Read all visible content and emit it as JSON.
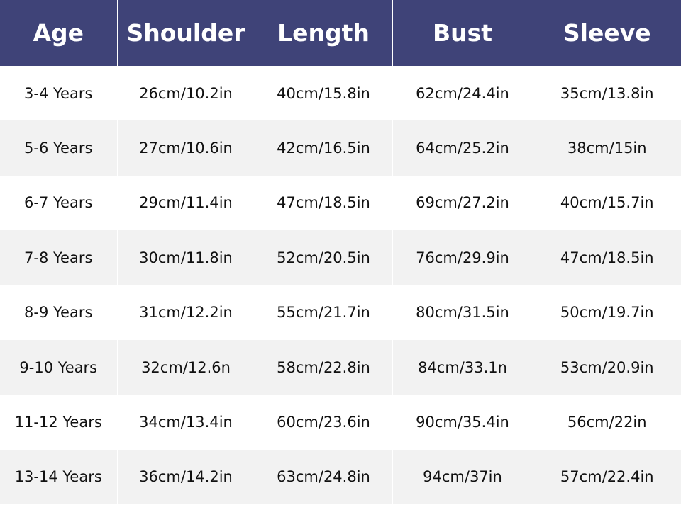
{
  "table": {
    "headers": [
      "Age",
      "Shoulder",
      "Length",
      "Bust",
      "Sleeve"
    ],
    "rows": [
      [
        "3-4 Years",
        "26cm/10.2in",
        "40cm/15.8in",
        "62cm/24.4in",
        "35cm/13.8in"
      ],
      [
        "5-6 Years",
        "27cm/10.6in",
        "42cm/16.5in",
        "64cm/25.2in",
        "38cm/15in"
      ],
      [
        "6-7 Years",
        "29cm/11.4in",
        "47cm/18.5in",
        "69cm/27.2in",
        "40cm/15.7in"
      ],
      [
        "7-8 Years",
        "30cm/11.8in",
        "52cm/20.5in",
        "76cm/29.9in",
        "47cm/18.5in"
      ],
      [
        "8-9 Years",
        "31cm/12.2in",
        "55cm/21.7in",
        "80cm/31.5in",
        "50cm/19.7in"
      ],
      [
        "9-10 Years",
        "32cm/12.6n",
        "58cm/22.8in",
        "84cm/33.1n",
        "53cm/20.9in"
      ],
      [
        "11-12 Years",
        "34cm/13.4in",
        "60cm/23.6in",
        "90cm/35.4in",
        "56cm/22in"
      ],
      [
        "13-14 Years",
        "36cm/14.2in",
        "63cm/24.8in",
        "94cm/37in",
        "57cm/22.4in"
      ]
    ]
  },
  "colors": {
    "header_bg": "#3f4378",
    "alt_row_bg": "#f2f2f2"
  }
}
